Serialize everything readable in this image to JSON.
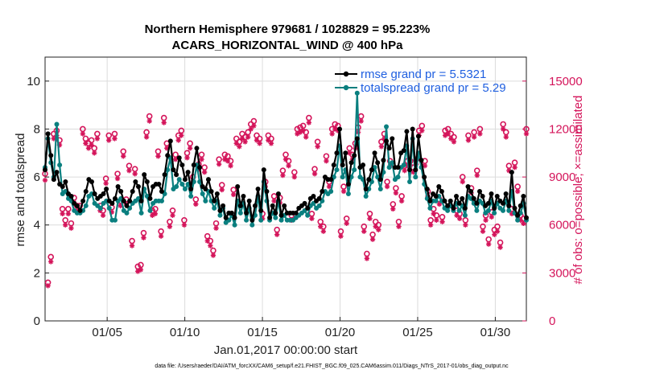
{
  "chart_data": {
    "type": "line",
    "title_line1": "Northern Hemisphere 979681 / 1028829 = 95.223%",
    "title_line2": "ACARS_HORIZONTAL_WIND @ 400 hPa",
    "xlabel": "Jan.01,2017 00:00:00 start",
    "ylabel_left": "rmse and totalspread",
    "ylabel_right": "# of obs: o=possible; ×=assimilated",
    "footer": "data file: /Users/raeder/DAI/ATM_forcXX/CAM6_setup/f.e21.FHIST_BGC.f09_025.CAM6assim.011/Diags_NTrS_2017-01/obs_diag_output.nc",
    "x_range": [
      1,
      32
    ],
    "ylim_left": [
      0,
      11
    ],
    "ylim_right": [
      0,
      16500
    ],
    "x_ticks": [
      {
        "label": "01/05",
        "value": 5
      },
      {
        "label": "01/10",
        "value": 10
      },
      {
        "label": "01/15",
        "value": 15
      },
      {
        "label": "01/20",
        "value": 20
      },
      {
        "label": "01/25",
        "value": 25
      },
      {
        "label": "01/30",
        "value": 30
      }
    ],
    "y_ticks_left": [
      "0",
      "2",
      "4",
      "6",
      "8",
      "10"
    ],
    "y_ticks_right": [
      "0",
      "3000",
      "6000",
      "9000",
      "12000",
      "15000"
    ],
    "grid": true,
    "legend_position": "top-right",
    "colors": {
      "rmse": "#000000",
      "totalspread": "#0a7f7f",
      "obs": "#d4145a",
      "legend_text": "#1f5fe0"
    },
    "series": [
      {
        "name": "rmse grand pr = 5.5321",
        "axis": "left",
        "values": [
          6.3,
          7.8,
          6.9,
          5.9,
          6.2,
          5.7,
          5.6,
          5.8,
          5.3,
          5.2,
          4.9,
          4.8,
          4.6,
          5.0,
          5.4,
          5.9,
          5.8,
          5.3,
          5.1,
          5.2,
          5.3,
          5.5,
          5.0,
          4.9,
          5.1,
          5.6,
          5.4,
          5.0,
          4.8,
          5.0,
          5.4,
          5.8,
          5.6,
          5.0,
          6.1,
          5.8,
          5.1,
          5.6,
          5.7,
          5.7,
          5.4,
          6.1,
          6.9,
          7.5,
          6.3,
          6.1,
          6.8,
          6.5,
          5.9,
          6.2,
          5.5,
          6.5,
          7.2,
          6.4,
          5.6,
          5.5,
          5.9,
          5.4,
          5.0,
          5.3,
          4.6,
          4.8,
          4.3,
          4.5,
          4.5,
          4.3,
          5.6,
          4.8,
          5.2,
          4.5,
          5.0,
          4.2,
          4.8,
          5.5,
          4.6,
          6.3,
          5.4,
          4.3,
          4.8,
          4.5,
          5.3,
          4.4,
          4.8,
          4.5,
          4.5,
          4.5,
          4.5,
          4.7,
          4.8,
          4.9,
          4.7,
          5.1,
          5.2,
          5.0,
          5.1,
          5.4,
          6.0,
          5.9,
          5.9,
          6.5,
          7.0,
          8.0,
          6.5,
          7.0,
          5.7,
          6.6,
          6.9,
          7.6,
          6.4,
          6.5,
          5.5,
          5.9,
          6.3,
          7.0,
          6.6,
          5.9,
          6.7,
          7.5,
          7.2,
          7.6,
          6.4,
          6.4,
          7.0,
          7.1,
          7.9,
          6.3,
          8.0,
          6.3,
          7.7,
          6.7,
          6.0,
          5.5,
          5.0,
          5.3,
          5.2,
          5.6,
          5.4,
          5.0,
          4.8,
          5.0,
          4.7,
          5.2,
          4.9,
          5.1,
          4.7,
          5.6,
          5.4,
          5.1,
          4.9,
          5.4,
          5.2,
          4.8,
          4.9,
          5.3,
          4.7,
          5.2,
          5.0,
          4.9,
          5.3,
          4.8,
          6.2,
          4.7,
          4.4,
          4.8,
          5.2,
          4.3
        ]
      },
      {
        "name": "totalspread grand pr = 5.29",
        "axis": "left",
        "values": [
          6.4,
          7.6,
          6.6,
          6.0,
          8.2,
          6.5,
          5.3,
          5.4,
          5.1,
          5.0,
          4.6,
          4.5,
          4.5,
          4.6,
          4.8,
          5.2,
          5.3,
          4.9,
          4.8,
          4.7,
          4.9,
          5.0,
          4.7,
          4.2,
          4.2,
          5.0,
          5.1,
          4.6,
          4.5,
          4.7,
          4.9,
          5.0,
          5.1,
          4.5,
          5.5,
          5.2,
          4.6,
          4.9,
          5.0,
          5.0,
          5.0,
          5.3,
          6.3,
          6.8,
          5.5,
          5.6,
          5.9,
          5.7,
          5.5,
          5.7,
          5.2,
          5.8,
          6.5,
          5.8,
          5.3,
          5.0,
          5.4,
          5.0,
          4.7,
          5.0,
          4.4,
          4.7,
          4.1,
          4.2,
          4.4,
          4.0,
          5.0,
          4.5,
          4.9,
          4.2,
          4.7,
          4.0,
          4.4,
          5.2,
          4.2,
          5.8,
          5.0,
          4.2,
          4.5,
          4.3,
          5.0,
          4.2,
          4.4,
          4.2,
          4.2,
          4.2,
          4.3,
          4.4,
          4.5,
          4.6,
          4.4,
          4.8,
          4.9,
          4.7,
          4.8,
          5.0,
          5.4,
          5.3,
          5.4,
          6.0,
          6.3,
          7.3,
          6.0,
          6.3,
          5.3,
          6.0,
          6.3,
          9.5,
          6.0,
          5.9,
          5.2,
          5.5,
          5.8,
          6.4,
          6.0,
          5.5,
          6.2,
          8.1,
          6.4,
          6.6,
          5.9,
          6.0,
          6.4,
          6.5,
          7.3,
          5.8,
          7.6,
          6.0,
          7.0,
          6.4,
          5.7,
          5.1,
          4.7,
          5.0,
          5.0,
          5.2,
          5.0,
          4.7,
          4.6,
          4.8,
          4.6,
          4.9,
          4.6,
          4.8,
          4.4,
          5.2,
          5.1,
          4.9,
          4.6,
          5.0,
          4.9,
          4.5,
          4.6,
          5.0,
          4.5,
          4.9,
          4.7,
          4.6,
          5.0,
          4.6,
          5.4,
          4.5,
          4.2,
          4.5,
          4.9,
          4.2
        ]
      },
      {
        "name": "# of obs possible",
        "axis": "right",
        "marker": "o",
        "values": [
          9200,
          2400,
          4000,
          11700,
          11900,
          11300,
          7000,
          6300,
          7000,
          6100,
          7700,
          7200,
          7200,
          12000,
          11400,
          11100,
          11300,
          10800,
          11700,
          7200,
          6900,
          8900,
          11600,
          7100,
          11700,
          9200,
          7500,
          10600,
          7600,
          9700,
          5000,
          9500,
          3400,
          3500,
          5500,
          11800,
          12800,
          6900,
          7000,
          10600,
          5600,
          12700,
          11100,
          6200,
          6900,
          10400,
          11600,
          11900,
          6300,
          10500,
          11100,
          9000,
          7600,
          9800,
          10400,
          9600,
          5300,
          5000,
          4400,
          6100,
          10100,
          8500,
          10400,
          10300,
          10000,
          8200,
          11400,
          11200,
          11700,
          11500,
          11800,
          12300,
          12500,
          11600,
          11400,
          6700,
          8700,
          11600,
          11400,
          7800,
          5700,
          7700,
          9400,
          10400,
          10000,
          6600,
          9300,
          12000,
          12100,
          12200,
          11800,
          12700,
          6700,
          9500,
          11200,
          6200,
          5900,
          10300,
          8700,
          12000,
          12300,
          12200,
          5600,
          8400,
          6400,
          10800,
          10400,
          11100,
          12100,
          12800,
          5900,
          4200,
          6700,
          5400,
          6200,
          6000,
          11200,
          11700,
          8700,
          10000,
          7300,
          8300,
          6200,
          7800,
          9700,
          10000,
          10000,
          9600,
          10100,
          11900,
          12200,
          10000,
          8100,
          6300,
          7000,
          6600,
          7600,
          6500,
          11900,
          12000,
          11700,
          11500,
          6900,
          6700,
          9000,
          6300,
          11600,
          8300,
          11800,
          9400,
          12000,
          5900,
          6600,
          5100,
          6800,
          5700,
          5900,
          4900,
          12300,
          11800,
          9700,
          7000,
          9900,
          8400,
          6600,
          6400,
          12000
        ]
      },
      {
        "name": "# of obs assimilated",
        "axis": "right",
        "marker": "x",
        "values": [
          8800,
          2200,
          3700,
          11400,
          11600,
          11000,
          6700,
          6000,
          6700,
          5800,
          7400,
          6900,
          6900,
          11700,
          11100,
          10800,
          11000,
          10500,
          11400,
          6900,
          6600,
          8600,
          11300,
          6800,
          11400,
          8900,
          7200,
          10300,
          7300,
          9400,
          4700,
          9200,
          3100,
          3200,
          5200,
          11500,
          12500,
          6600,
          6700,
          10300,
          5300,
          12400,
          10800,
          5900,
          6600,
          10100,
          11300,
          11600,
          6000,
          10200,
          10800,
          8700,
          7300,
          9500,
          10100,
          9300,
          5000,
          4700,
          4100,
          5800,
          9800,
          8200,
          10100,
          10000,
          9700,
          7900,
          11100,
          10900,
          11400,
          11200,
          11500,
          12000,
          12200,
          11300,
          11100,
          6400,
          8400,
          11300,
          11100,
          7500,
          5400,
          7400,
          9100,
          10100,
          9700,
          6300,
          9000,
          11700,
          11800,
          11900,
          11500,
          12400,
          6400,
          9200,
          10900,
          5900,
          5600,
          10000,
          8400,
          11700,
          12000,
          11900,
          5300,
          8100,
          6100,
          10500,
          10100,
          10800,
          11800,
          12500,
          5600,
          3900,
          6400,
          5100,
          5900,
          5700,
          10900,
          11400,
          8400,
          9700,
          7000,
          8000,
          5900,
          7500,
          9400,
          9700,
          9700,
          9300,
          9800,
          11600,
          11900,
          9700,
          7800,
          6000,
          6700,
          6300,
          7300,
          6200,
          11600,
          11700,
          11400,
          11200,
          6600,
          6400,
          8700,
          6000,
          11300,
          8000,
          11500,
          9100,
          11700,
          5600,
          6300,
          4800,
          6500,
          5400,
          5600,
          4600,
          12000,
          11500,
          9400,
          6700,
          9600,
          8100,
          6300,
          6100,
          11700
        ]
      }
    ]
  }
}
